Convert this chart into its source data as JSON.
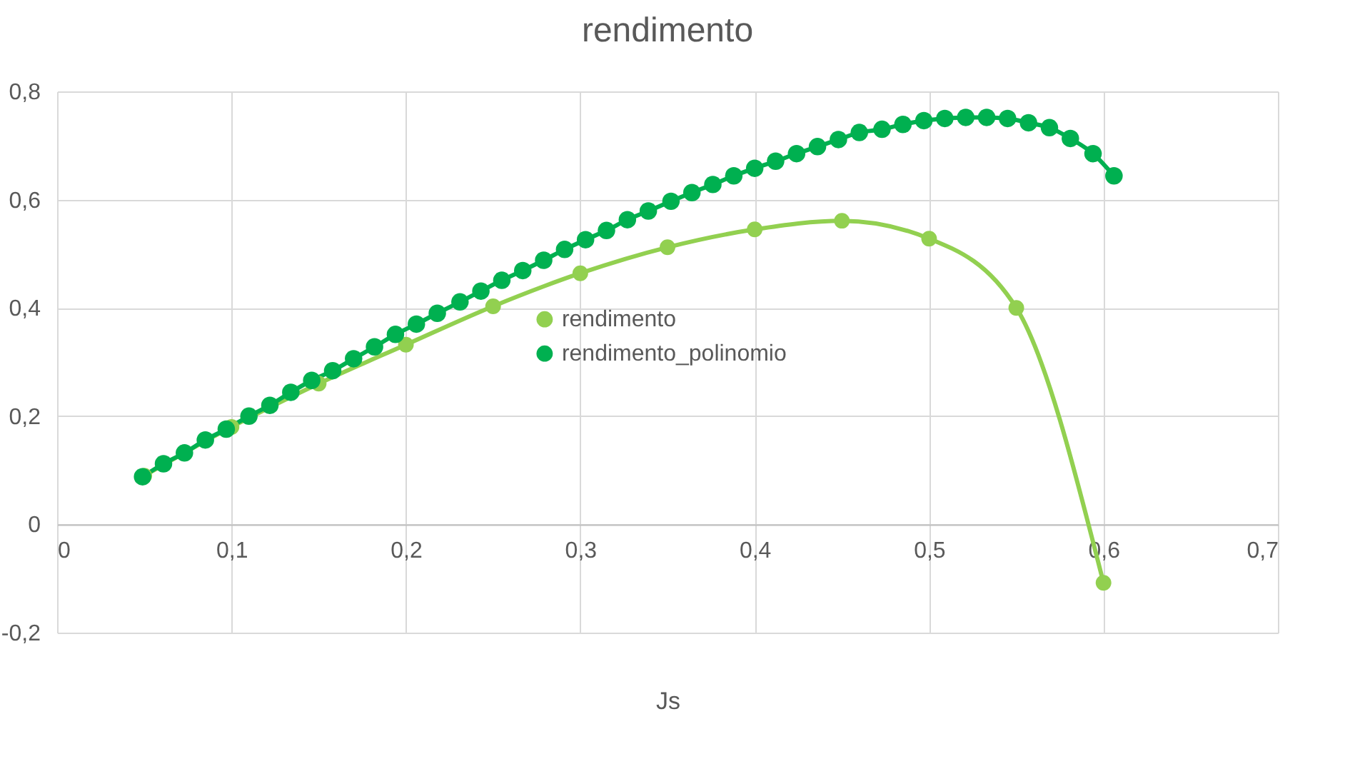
{
  "chart_data": {
    "type": "line",
    "title": "rendimento",
    "xlabel": "Js",
    "xlim": [
      0,
      0.7
    ],
    "xticks": [
      0,
      {
        "value": 0.1,
        "label": "0,1"
      },
      {
        "value": 0.2,
        "label": "0,2"
      },
      {
        "value": 0.3,
        "label": "0,3"
      },
      {
        "value": 0.4,
        "label": "0,4"
      },
      {
        "value": 0.5,
        "label": "0,5"
      },
      {
        "value": 0.6,
        "label": "0,6"
      },
      {
        "value": 0.7,
        "label": "0,7"
      }
    ],
    "ylim": [
      -0.2,
      0.8
    ],
    "yticks": [
      {
        "value": -0.2,
        "label": "-0,2"
      },
      0,
      {
        "value": 0.2,
        "label": "0,2"
      },
      {
        "value": 0.4,
        "label": "0,4"
      },
      {
        "value": 0.6,
        "label": "0,6"
      },
      {
        "value": 0.8,
        "label": "0,8"
      }
    ],
    "grid": true,
    "legend": "center",
    "marker": "circle",
    "line_style": "solid",
    "series": [
      {
        "name": "rendimento",
        "color": "#92d050",
        "x": [
          0.05,
          0.1,
          0.15,
          0.2,
          0.25,
          0.3,
          0.35,
          0.4,
          0.45,
          0.5,
          0.55,
          0.6
        ],
        "values": [
          0.09,
          0.18,
          0.26,
          0.332,
          0.403,
          0.464,
          0.512,
          0.545,
          0.561,
          0.528,
          0.4,
          -0.108
        ]
      },
      {
        "name": "rendimento_polinomio",
        "color": "#00b050",
        "x": [
          0.049,
          0.061,
          0.073,
          0.085,
          0.097,
          0.11,
          0.122,
          0.134,
          0.146,
          0.158,
          0.17,
          0.182,
          0.194,
          0.206,
          0.218,
          0.231,
          0.243,
          0.255,
          0.267,
          0.279,
          0.291,
          0.303,
          0.315,
          0.327,
          0.339,
          0.352,
          0.364,
          0.376,
          0.388,
          0.4,
          0.412,
          0.424,
          0.436,
          0.448,
          0.46,
          0.473,
          0.485,
          0.497,
          0.509,
          0.521,
          0.533,
          0.545,
          0.557,
          0.569,
          0.581,
          0.594,
          0.606
        ],
        "values": [
          0.088,
          0.112,
          0.132,
          0.156,
          0.176,
          0.2,
          0.22,
          0.244,
          0.266,
          0.284,
          0.306,
          0.328,
          0.351,
          0.37,
          0.39,
          0.411,
          0.431,
          0.451,
          0.469,
          0.488,
          0.508,
          0.526,
          0.543,
          0.563,
          0.579,
          0.597,
          0.613,
          0.628,
          0.644,
          0.658,
          0.671,
          0.685,
          0.698,
          0.711,
          0.724,
          0.73,
          0.739,
          0.746,
          0.75,
          0.752,
          0.752,
          0.75,
          0.742,
          0.733,
          0.713,
          0.685,
          0.644
        ]
      }
    ]
  }
}
